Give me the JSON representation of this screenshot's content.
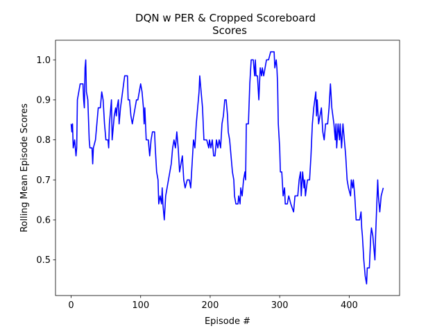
{
  "chart_data": {
    "type": "line",
    "title": "DQN w PER & Cropped Scoreboard",
    "subtitle": "Scores",
    "x_label": "Episode #",
    "y_label": "Rolling Mean Episode Scores",
    "xlim": [
      -22.5,
      472.5
    ],
    "ylim": [
      0.411,
      1.049
    ],
    "xticks": [
      0,
      100,
      200,
      300,
      400
    ],
    "yticks": [
      0.5,
      0.6,
      0.7,
      0.8,
      0.9,
      {
        "value": 1,
        "label": "1.0"
      }
    ],
    "grid": false,
    "x": [
      0,
      1,
      2,
      3,
      5,
      6,
      7,
      8,
      9,
      11,
      13,
      17,
      18,
      19,
      20,
      21,
      22,
      24,
      26,
      27,
      30,
      31,
      32,
      35,
      37,
      39,
      42,
      44,
      46,
      48,
      50,
      53,
      54,
      55,
      57,
      58,
      59,
      60,
      62,
      64,
      65,
      66,
      68,
      69,
      71,
      74,
      77,
      81,
      82,
      84,
      86,
      88,
      90,
      92,
      94,
      96,
      98,
      100,
      102,
      104,
      105,
      106,
      108,
      111,
      113,
      115,
      117,
      120,
      121,
      123,
      125,
      126,
      128,
      130,
      131,
      132,
      134,
      136,
      138,
      140,
      142,
      144,
      146,
      148,
      150,
      152,
      154,
      156,
      158,
      160,
      162,
      164,
      167,
      170,
      172,
      174,
      176,
      178,
      180,
      182,
      184,
      185,
      187,
      189,
      191,
      195,
      198,
      199,
      201,
      203,
      205,
      207,
      209,
      211,
      213,
      215,
      217,
      219,
      221,
      223,
      225,
      226,
      228,
      230,
      232,
      234,
      235,
      237,
      240,
      241,
      243,
      244,
      246,
      248,
      250,
      251,
      252,
      255,
      257,
      259,
      262,
      264,
      265,
      266,
      268,
      270,
      272,
      274,
      275,
      277,
      279,
      281,
      284,
      287,
      292,
      293,
      295,
      296,
      297,
      298,
      300,
      301,
      303,
      305,
      307,
      308,
      311,
      313,
      316,
      320,
      322,
      326,
      328,
      330,
      331,
      333,
      335,
      336,
      337,
      340,
      343,
      345,
      347,
      349,
      352,
      353,
      354,
      356,
      358,
      360,
      362,
      364,
      366,
      369,
      371,
      373,
      375,
      378,
      380,
      381,
      382,
      384,
      386,
      387,
      389,
      391,
      393,
      395,
      397,
      399,
      402,
      403,
      405,
      406,
      408,
      410,
      415,
      417,
      418,
      419,
      421,
      423,
      425,
      426,
      429,
      431,
      432,
      434,
      437,
      438,
      441,
      442,
      444,
      446,
      449
    ],
    "series": [
      {
        "name": "Scores",
        "color": "#0000ff",
        "values": [
          0.84,
          0.82,
          0.84,
          0.78,
          0.8,
          0.78,
          0.76,
          0.78,
          0.9,
          0.92,
          0.94,
          0.94,
          0.9,
          0.88,
          0.98,
          1.0,
          0.92,
          0.9,
          0.8,
          0.78,
          0.78,
          0.74,
          0.78,
          0.8,
          0.84,
          0.88,
          0.88,
          0.92,
          0.9,
          0.84,
          0.8,
          0.8,
          0.78,
          0.84,
          0.88,
          0.9,
          0.8,
          0.82,
          0.86,
          0.88,
          0.86,
          0.88,
          0.9,
          0.84,
          0.88,
          0.92,
          0.96,
          0.96,
          0.9,
          0.9,
          0.86,
          0.84,
          0.86,
          0.88,
          0.9,
          0.9,
          0.92,
          0.94,
          0.92,
          0.88,
          0.84,
          0.88,
          0.8,
          0.8,
          0.76,
          0.8,
          0.82,
          0.82,
          0.78,
          0.72,
          0.7,
          0.64,
          0.66,
          0.64,
          0.68,
          0.64,
          0.6,
          0.66,
          0.68,
          0.7,
          0.72,
          0.74,
          0.78,
          0.8,
          0.78,
          0.82,
          0.78,
          0.72,
          0.74,
          0.76,
          0.7,
          0.68,
          0.7,
          0.7,
          0.68,
          0.74,
          0.8,
          0.78,
          0.84,
          0.88,
          0.92,
          0.96,
          0.92,
          0.88,
          0.8,
          0.8,
          0.78,
          0.8,
          0.78,
          0.8,
          0.76,
          0.76,
          0.8,
          0.78,
          0.8,
          0.78,
          0.84,
          0.86,
          0.9,
          0.9,
          0.86,
          0.82,
          0.8,
          0.76,
          0.72,
          0.7,
          0.66,
          0.64,
          0.64,
          0.66,
          0.64,
          0.68,
          0.66,
          0.7,
          0.72,
          0.7,
          0.84,
          0.84,
          0.94,
          1.0,
          1.0,
          0.96,
          1.0,
          0.96,
          0.96,
          0.9,
          0.98,
          0.96,
          0.98,
          0.96,
          0.98,
          1.0,
          1.0,
          1.02,
          1.02,
          0.98,
          1.0,
          0.98,
          0.94,
          0.84,
          0.78,
          0.72,
          0.72,
          0.66,
          0.68,
          0.64,
          0.64,
          0.66,
          0.64,
          0.62,
          0.66,
          0.66,
          0.7,
          0.72,
          0.66,
          0.72,
          0.68,
          0.7,
          0.66,
          0.7,
          0.7,
          0.76,
          0.84,
          0.88,
          0.92,
          0.86,
          0.9,
          0.84,
          0.86,
          0.88,
          0.82,
          0.8,
          0.84,
          0.84,
          0.88,
          0.94,
          0.88,
          0.84,
          0.8,
          0.84,
          0.78,
          0.84,
          0.8,
          0.84,
          0.78,
          0.84,
          0.8,
          0.76,
          0.7,
          0.68,
          0.66,
          0.7,
          0.68,
          0.7,
          0.66,
          0.6,
          0.6,
          0.62,
          0.58,
          0.56,
          0.5,
          0.46,
          0.44,
          0.48,
          0.48,
          0.56,
          0.58,
          0.56,
          0.5,
          0.56,
          0.7,
          0.66,
          0.62,
          0.66,
          0.68
        ]
      }
    ]
  }
}
